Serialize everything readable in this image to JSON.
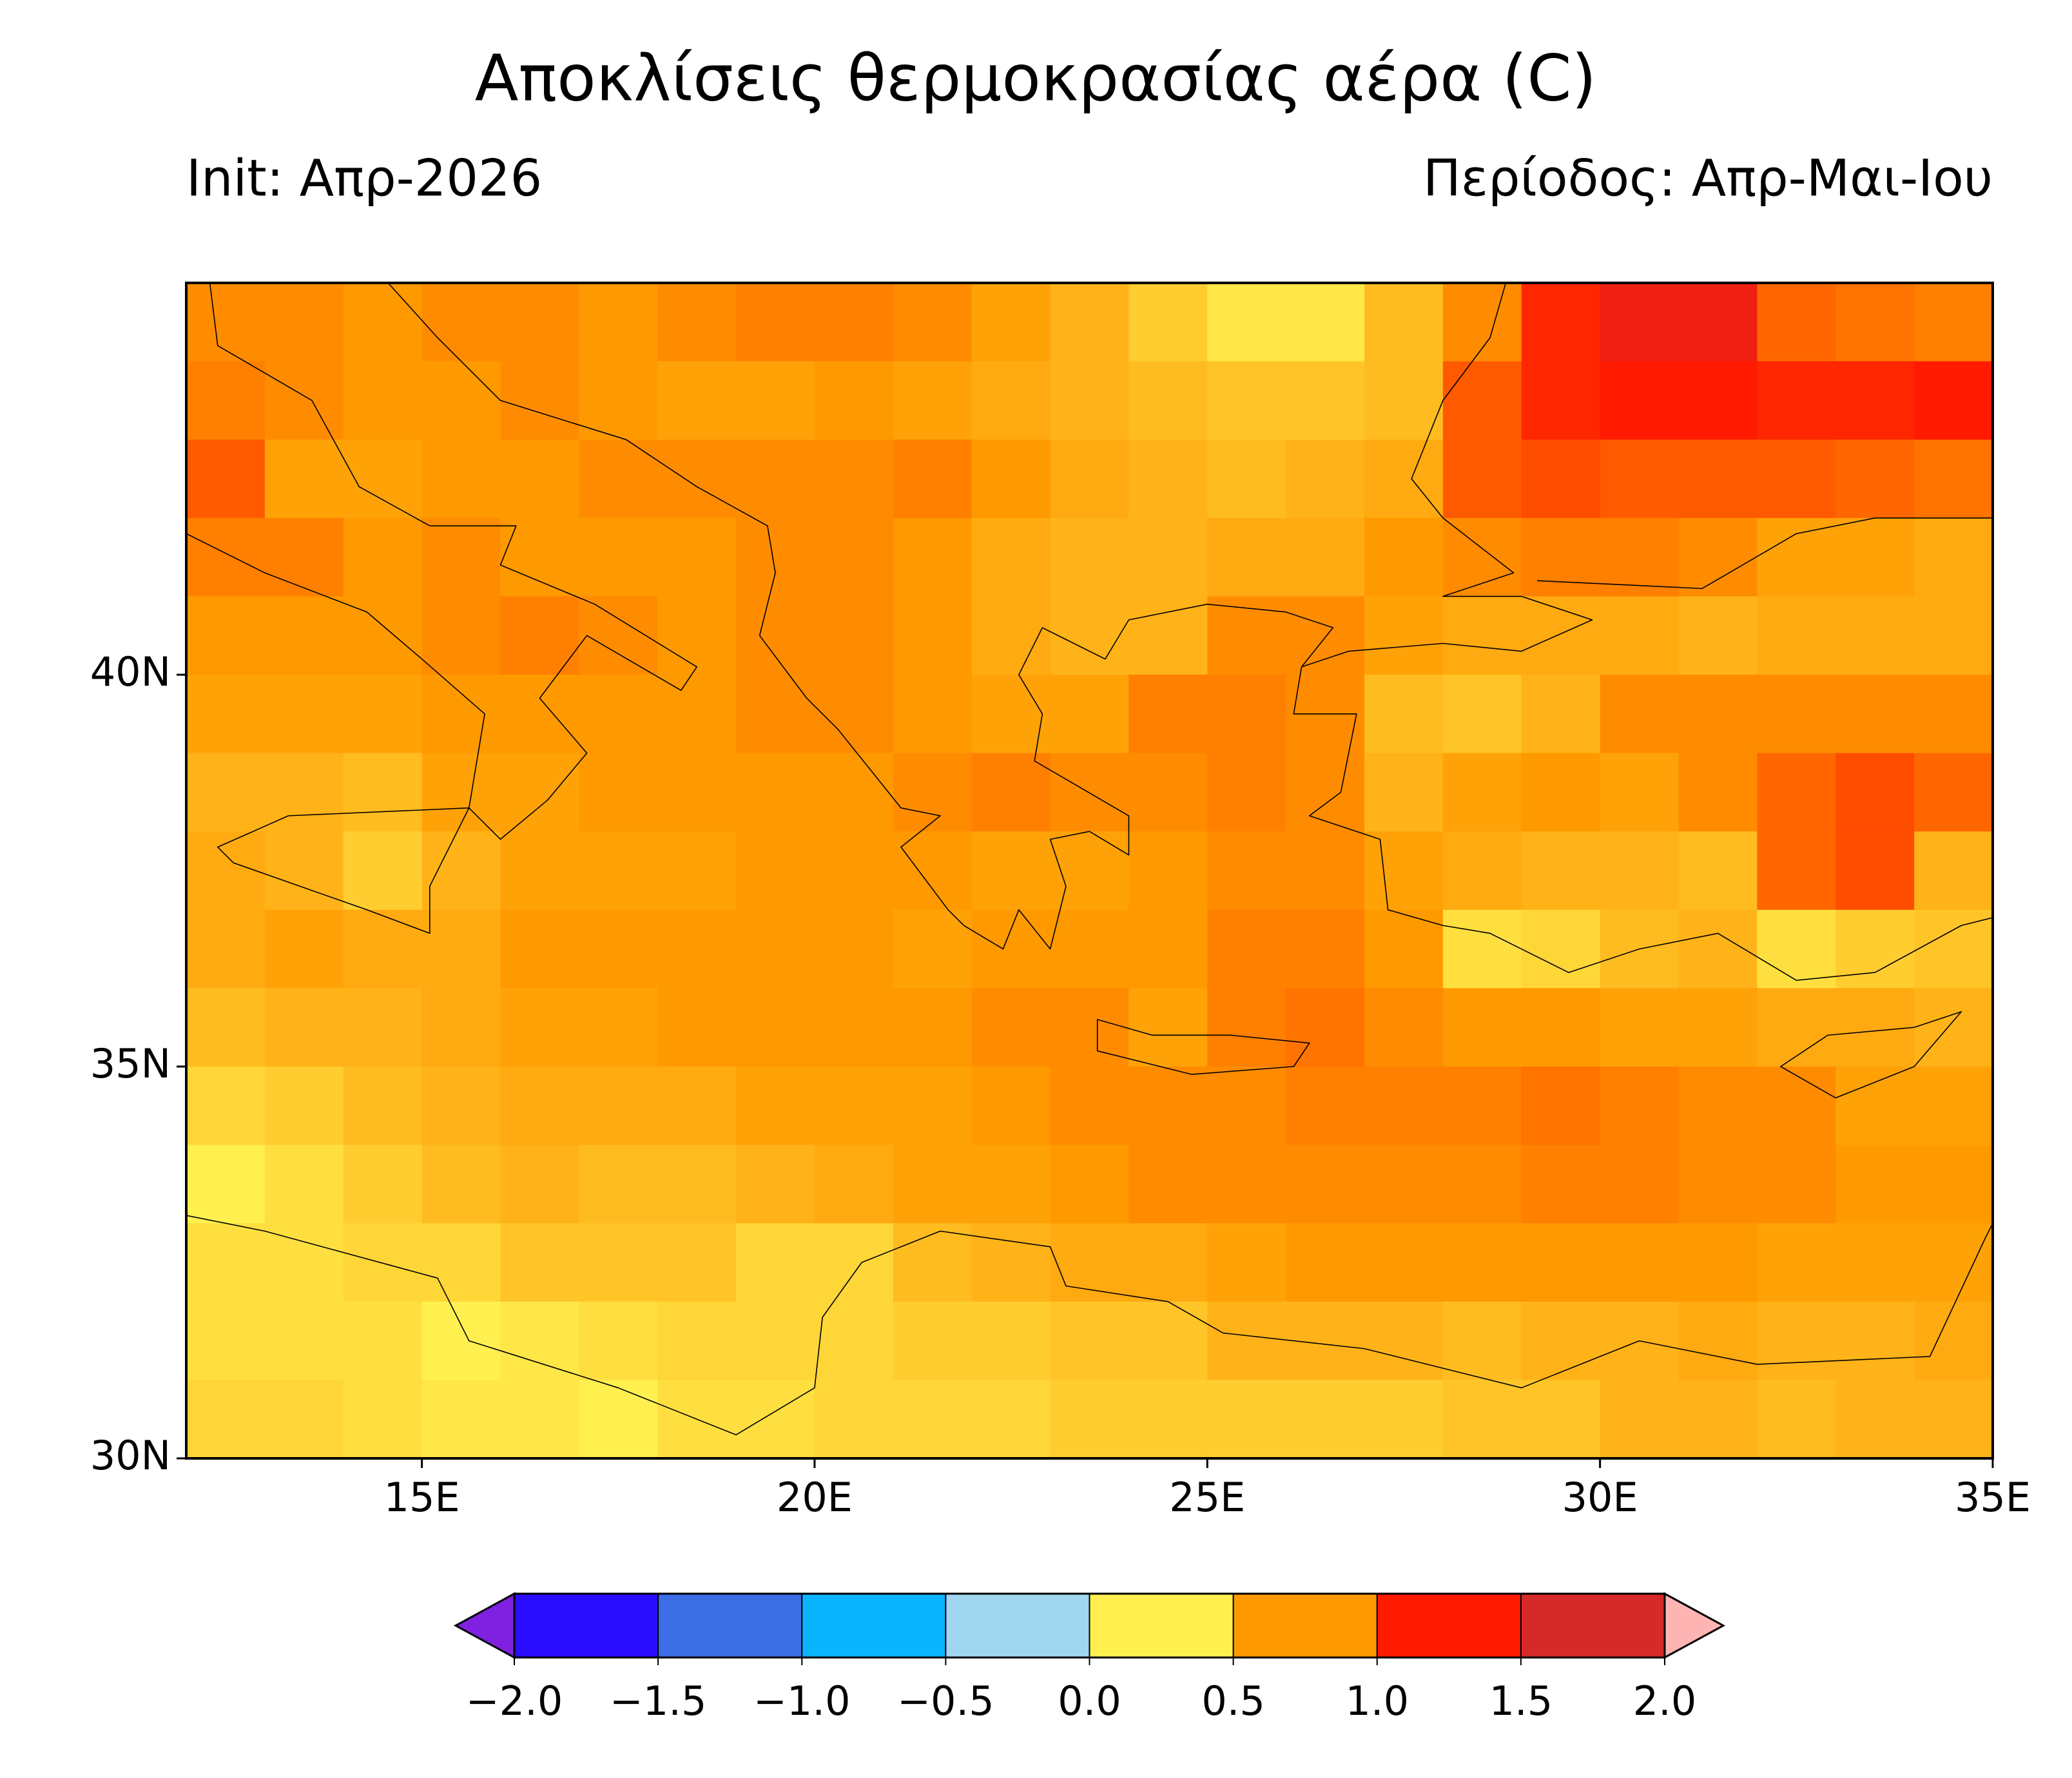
{
  "chart_data": {
    "type": "heatmap",
    "title": "Αποκλίσεις θερμοκρασίας  αέρα (C)",
    "subtitle_left": "Init: Απρ-2026",
    "subtitle_right": "Περίοδος: Απρ-Μαι-Ιου",
    "xlim": [
      12,
      35
    ],
    "ylim": [
      30,
      45
    ],
    "xticks": [
      {
        "value": 15,
        "label": "15E"
      },
      {
        "value": 20,
        "label": "20E"
      },
      {
        "value": 25,
        "label": "25E"
      },
      {
        "value": 30,
        "label": "30E"
      },
      {
        "value": 35,
        "label": "35E"
      }
    ],
    "yticks": [
      {
        "value": 30,
        "label": "30N"
      },
      {
        "value": 35,
        "label": "35N"
      },
      {
        "value": 40,
        "label": "40N"
      }
    ],
    "values": [
      [
        0.8,
        0.8,
        0.75,
        0.8,
        0.8,
        0.75,
        0.8,
        0.85,
        0.85,
        0.8,
        0.7,
        0.6,
        0.45,
        0.3,
        0.3,
        0.55,
        0.8,
        1.2,
        1.45,
        1.45,
        0.95,
        0.9,
        0.85
      ],
      [
        0.85,
        0.8,
        0.75,
        0.75,
        0.8,
        0.75,
        0.7,
        0.7,
        0.75,
        0.7,
        0.65,
        0.6,
        0.55,
        0.5,
        0.5,
        0.55,
        1.0,
        1.2,
        1.25,
        1.25,
        1.2,
        1.2,
        1.25
      ],
      [
        1.0,
        0.7,
        0.7,
        0.75,
        0.75,
        0.8,
        0.8,
        0.8,
        0.8,
        0.85,
        0.75,
        0.65,
        0.6,
        0.55,
        0.6,
        0.65,
        1.0,
        1.05,
        1.0,
        1.0,
        1.0,
        0.95,
        0.9
      ],
      [
        0.85,
        0.85,
        0.75,
        0.8,
        0.75,
        0.75,
        0.75,
        0.8,
        0.8,
        0.75,
        0.65,
        0.6,
        0.6,
        0.65,
        0.65,
        0.75,
        0.8,
        0.85,
        0.85,
        0.8,
        0.7,
        0.7,
        0.65
      ],
      [
        0.75,
        0.75,
        0.75,
        0.8,
        0.85,
        0.8,
        0.75,
        0.8,
        0.8,
        0.75,
        0.65,
        0.6,
        0.6,
        0.8,
        0.8,
        0.7,
        0.65,
        0.65,
        0.65,
        0.6,
        0.65,
        0.65,
        0.65
      ],
      [
        0.7,
        0.7,
        0.7,
        0.75,
        0.75,
        0.75,
        0.75,
        0.8,
        0.8,
        0.75,
        0.7,
        0.7,
        0.85,
        0.85,
        0.8,
        0.55,
        0.5,
        0.6,
        0.8,
        0.8,
        0.8,
        0.8,
        0.8
      ],
      [
        0.6,
        0.6,
        0.55,
        0.7,
        0.7,
        0.75,
        0.75,
        0.75,
        0.75,
        0.8,
        0.85,
        0.8,
        0.8,
        0.85,
        0.8,
        0.6,
        0.7,
        0.75,
        0.7,
        0.8,
        0.95,
        1.05,
        0.95
      ],
      [
        0.65,
        0.6,
        0.45,
        0.6,
        0.7,
        0.7,
        0.7,
        0.75,
        0.75,
        0.75,
        0.7,
        0.7,
        0.75,
        0.8,
        0.8,
        0.7,
        0.65,
        0.6,
        0.6,
        0.55,
        0.95,
        1.05,
        0.6
      ],
      [
        0.65,
        0.7,
        0.65,
        0.65,
        0.75,
        0.75,
        0.75,
        0.75,
        0.75,
        0.7,
        0.75,
        0.75,
        0.75,
        0.85,
        0.85,
        0.75,
        0.35,
        0.4,
        0.55,
        0.6,
        0.35,
        0.45,
        0.5
      ],
      [
        0.55,
        0.6,
        0.6,
        0.65,
        0.7,
        0.7,
        0.75,
        0.75,
        0.75,
        0.75,
        0.8,
        0.8,
        0.7,
        0.85,
        0.9,
        0.8,
        0.75,
        0.75,
        0.7,
        0.7,
        0.65,
        0.65,
        0.6
      ],
      [
        0.4,
        0.45,
        0.55,
        0.6,
        0.65,
        0.65,
        0.65,
        0.7,
        0.7,
        0.7,
        0.75,
        0.8,
        0.8,
        0.8,
        0.85,
        0.85,
        0.85,
        0.9,
        0.85,
        0.8,
        0.8,
        0.7,
        0.7
      ],
      [
        0.25,
        0.35,
        0.45,
        0.55,
        0.6,
        0.55,
        0.55,
        0.6,
        0.65,
        0.7,
        0.7,
        0.75,
        0.8,
        0.8,
        0.8,
        0.8,
        0.8,
        0.85,
        0.85,
        0.8,
        0.8,
        0.75,
        0.75
      ],
      [
        0.35,
        0.35,
        0.4,
        0.4,
        0.5,
        0.5,
        0.5,
        0.4,
        0.4,
        0.55,
        0.6,
        0.65,
        0.65,
        0.7,
        0.75,
        0.75,
        0.75,
        0.75,
        0.75,
        0.75,
        0.7,
        0.7,
        0.7
      ],
      [
        0.35,
        0.35,
        0.35,
        0.25,
        0.3,
        0.35,
        0.4,
        0.4,
        0.4,
        0.45,
        0.45,
        0.5,
        0.5,
        0.6,
        0.6,
        0.6,
        0.55,
        0.6,
        0.6,
        0.65,
        0.6,
        0.6,
        0.65
      ],
      [
        0.4,
        0.4,
        0.35,
        0.3,
        0.3,
        0.25,
        0.35,
        0.35,
        0.4,
        0.4,
        0.4,
        0.45,
        0.45,
        0.45,
        0.45,
        0.45,
        0.5,
        0.5,
        0.6,
        0.6,
        0.55,
        0.6,
        0.6
      ]
    ],
    "colorbar": {
      "levels": [
        {
          "value": -2,
          "label": "−2.0"
        },
        {
          "value": -1.5,
          "label": "−1.5"
        },
        {
          "value": -1,
          "label": "−1.0"
        },
        {
          "value": -0.5,
          "label": "−0.5"
        },
        {
          "value": 0,
          "label": "0.0"
        },
        {
          "value": 0.5,
          "label": "0.5"
        },
        {
          "value": 1,
          "label": "1.0"
        },
        {
          "value": 1.5,
          "label": "1.5"
        },
        {
          "value": 2,
          "label": "2.0"
        }
      ],
      "colors": [
        "#2a0cff",
        "#3c6ee6",
        "#0ab4ff",
        "#a0d6f0",
        "#fff050",
        "#ff9900",
        "#ff1a00",
        "#d62a2a"
      ],
      "under_color": "#8020e0",
      "over_color": "#ffb4b4"
    }
  }
}
